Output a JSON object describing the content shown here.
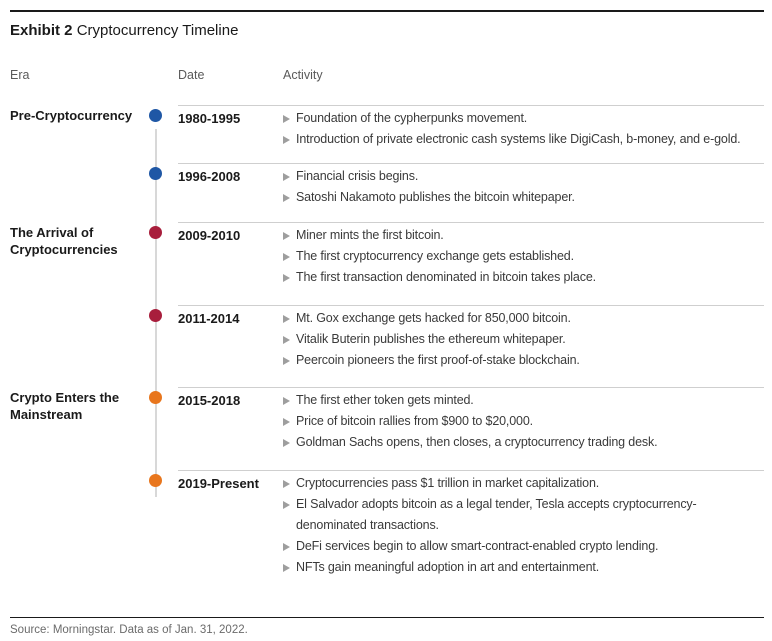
{
  "exhibit": {
    "label": "Exhibit 2",
    "title": "Cryptocurrency Timeline"
  },
  "columns": {
    "era": "Era",
    "date": "Date",
    "activity": "Activity"
  },
  "groups": [
    {
      "era": "Pre-Cryptocurrency",
      "date": "1980-1995",
      "dot_color": "#1f57a5",
      "activities": [
        "Foundation of the cypherpunks movement.",
        "Introduction of private electronic cash systems like DigiCash, b-money, and e-gold."
      ]
    },
    {
      "era": "",
      "date": "1996-2008",
      "dot_color": "#1f57a5",
      "activities": [
        "Financial crisis begins.",
        "Satoshi Nakamoto publishes the bitcoin whitepaper."
      ]
    },
    {
      "era": "The Arrival of Cryptocurrencies",
      "date": "2009-2010",
      "dot_color": "#a81e3c",
      "activities": [
        "Miner mints the first bitcoin.",
        "The first cryptocurrency exchange gets established.",
        "The first transaction denominated in bitcoin takes place."
      ]
    },
    {
      "era": "",
      "date": "2011-2014",
      "dot_color": "#a81e3c",
      "activities": [
        "Mt. Gox exchange gets hacked for 850,000 bitcoin.",
        "Vitalik Buterin publishes the ethereum whitepaper.",
        "Peercoin pioneers the first proof-of-stake blockchain."
      ]
    },
    {
      "era": "Crypto Enters the Mainstream",
      "date": "2015-2018",
      "dot_color": "#e8761d",
      "activities": [
        "The first ether token gets minted.",
        "Price of bitcoin rallies from $900 to $20,000.",
        "Goldman Sachs opens, then closes, a cryptocurrency trading desk."
      ]
    },
    {
      "era": "",
      "date": "2019-Present",
      "dot_color": "#e8761d",
      "activities": [
        "Cryptocurrencies pass $1 trillion in market capitalization.",
        "El Salvador adopts bitcoin as a legal tender, Tesla accepts cryptocurrency-denominated transactions.",
        "DeFi services begin to allow smart-contract-enabled crypto lending.",
        "NFTs gain meaningful adoption in art and entertainment."
      ]
    }
  ],
  "source": "Source: Morningstar. Data as of Jan. 31, 2022.",
  "colors": {
    "era_blue": "#1f57a5",
    "era_red": "#a81e3c",
    "era_orange": "#e8761d",
    "timeline_line": "#d8d8d8",
    "bullet_gray": "#9e9e9e",
    "rule_dark": "#1a1a1a"
  }
}
